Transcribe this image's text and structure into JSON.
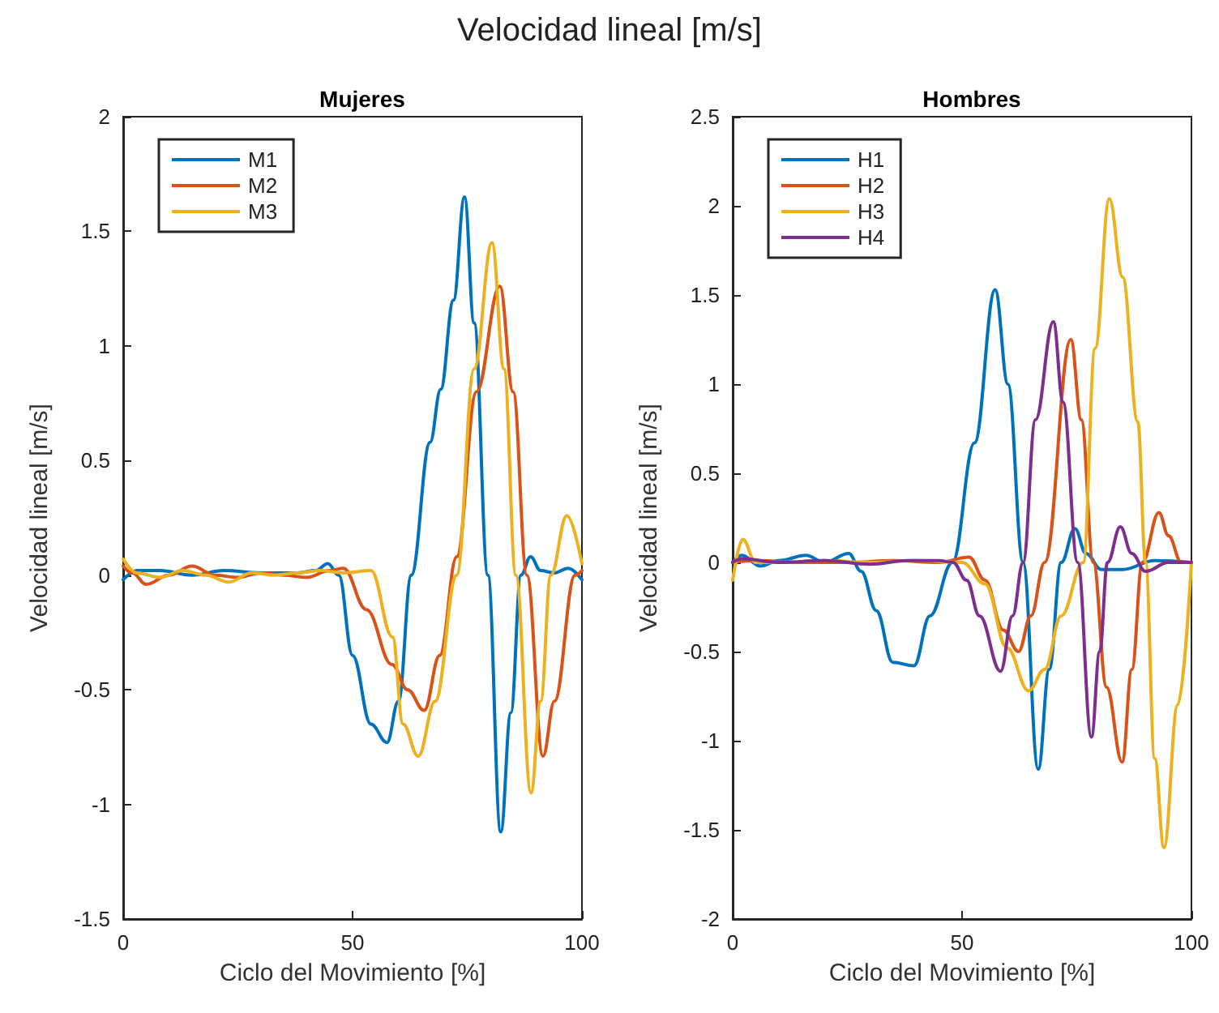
{
  "chart_data": [
    {
      "type": "line",
      "title": "Velocidad lineal [m/s]",
      "subtitle": "Mujeres",
      "xlabel": "Ciclo del Movimiento [%]",
      "ylabel": "Velocidad lineal [m/s]",
      "xlim": [
        0,
        100
      ],
      "xticks": [
        0,
        50,
        100
      ],
      "ylim": [
        -1.5,
        2
      ],
      "yticks": [
        -1.5,
        -1,
        -0.5,
        0,
        0.5,
        1,
        1.5,
        2
      ],
      "legend": "top left",
      "marker": "none",
      "line_style": "solid",
      "grid": false,
      "series": [
        {
          "name": "M1",
          "color": "#0072bd",
          "x": [
            0,
            3,
            8,
            15,
            22,
            30,
            38,
            42,
            44.6,
            47,
            50,
            54,
            57.5,
            60,
            62.8,
            66.9,
            69.2,
            72,
            74.4,
            76.5,
            79.5,
            82.3,
            84.5,
            86.7,
            88.8,
            91,
            94,
            97,
            100
          ],
          "values": [
            -0.02,
            0.02,
            0.02,
            0,
            0.02,
            0.01,
            0.01,
            0.02,
            0.05,
            0,
            -0.35,
            -0.65,
            -0.73,
            -0.55,
            0,
            0.58,
            0.81,
            1.2,
            1.65,
            1.1,
            0,
            -1.12,
            -0.6,
            0,
            0.08,
            0.02,
            0.01,
            0.03,
            -0.02
          ]
        },
        {
          "name": "M2",
          "color": "#d95319",
          "x": [
            0,
            2,
            5,
            10,
            15,
            20,
            25,
            30,
            35,
            40,
            45,
            48,
            53,
            58.6,
            62,
            65.6,
            69,
            72.7,
            77,
            82.1,
            85,
            88,
            91.5,
            94,
            98.5,
            100
          ],
          "values": [
            0.04,
            0.01,
            -0.04,
            0,
            0.04,
            0,
            -0.01,
            0.01,
            0,
            -0.01,
            0.02,
            0.03,
            -0.15,
            -0.39,
            -0.5,
            -0.59,
            -0.35,
            0.08,
            0.8,
            1.26,
            0.8,
            0,
            -0.79,
            -0.55,
            0,
            0.02
          ]
        },
        {
          "name": "M3",
          "color": "#edb120",
          "x": [
            0,
            3,
            8,
            13,
            18,
            23,
            28,
            33,
            38,
            43,
            48,
            54,
            58.7,
            61,
            64.3,
            68,
            72.7,
            76.5,
            80.4,
            83,
            85.6,
            88.9,
            91,
            93.2,
            96.7,
            100
          ],
          "values": [
            0.07,
            0.01,
            -0.01,
            0.02,
            0,
            -0.03,
            0.01,
            0,
            0.01,
            0.02,
            0.01,
            0.02,
            -0.27,
            -0.65,
            -0.79,
            -0.55,
            0,
            0.9,
            1.45,
            0.9,
            0,
            -0.95,
            -0.55,
            0,
            0.26,
            0.05
          ]
        }
      ]
    },
    {
      "type": "line",
      "title": "Hombres",
      "xlabel": "Ciclo del Movimiento [%]",
      "ylabel": "Velocidad lineal [m/s]",
      "xlim": [
        0,
        100
      ],
      "xticks": [
        0,
        50,
        100
      ],
      "ylim": [
        -2,
        2.5
      ],
      "yticks": [
        -2,
        -1.5,
        -1,
        -0.5,
        0,
        0.5,
        1,
        1.5,
        2,
        2.5
      ],
      "legend": "top left",
      "marker": "none",
      "line_style": "solid",
      "grid": false,
      "series": [
        {
          "name": "H1",
          "color": "#0072bd",
          "x": [
            0,
            2,
            6,
            10,
            16,
            20,
            25.3,
            28,
            31.3,
            34.9,
            39.5,
            43,
            47.9,
            52.7,
            57.2,
            60,
            63.3,
            66.6,
            69,
            71.6,
            74.6,
            77,
            80.4,
            85,
            92,
            100
          ],
          "values": [
            0,
            0.04,
            -0.02,
            0.01,
            0.04,
            0,
            0.05,
            -0.05,
            -0.27,
            -0.56,
            -0.58,
            -0.3,
            0,
            0.67,
            1.53,
            1,
            0,
            -1.16,
            -0.6,
            0,
            0.19,
            0.05,
            -0.04,
            -0.04,
            0.01,
            0
          ]
        },
        {
          "name": "H2",
          "color": "#d95319",
          "x": [
            0,
            5,
            15,
            25,
            35,
            45,
            51.5,
            55,
            59,
            62.3,
            65,
            68,
            73.7,
            76,
            78.6,
            81.5,
            84.9,
            87,
            89.3,
            92.9,
            95,
            97.8,
            100
          ],
          "values": [
            0,
            0.01,
            0,
            0,
            0.01,
            0,
            0.03,
            -0.1,
            -0.38,
            -0.5,
            -0.3,
            0,
            1.25,
            0.8,
            0,
            -0.7,
            -1.12,
            -0.6,
            0,
            0.28,
            0.15,
            0,
            0
          ]
        },
        {
          "name": "H3",
          "color": "#edb120",
          "x": [
            0,
            2.2,
            5,
            10,
            20,
            30,
            40,
            50,
            55,
            59.8,
            64.5,
            68,
            71.6,
            76.4,
            79,
            82.1,
            85,
            88.3,
            90,
            92,
            94,
            97,
            100
          ],
          "values": [
            -0.1,
            0.13,
            0,
            0,
            0.01,
            0,
            0.01,
            0,
            -0.12,
            -0.48,
            -0.72,
            -0.6,
            -0.3,
            0,
            1.2,
            2.04,
            1.6,
            0.79,
            0,
            -1.1,
            -1.6,
            -0.8,
            0
          ]
        },
        {
          "name": "H4",
          "color": "#7e2f8e",
          "x": [
            0,
            2,
            10,
            20,
            30,
            38,
            45,
            48,
            51,
            53.8,
            58.4,
            61,
            63.3,
            66,
            69.9,
            72,
            75.2,
            78.2,
            80,
            81.7,
            84.5,
            87,
            90,
            95,
            100
          ],
          "values": [
            0,
            0.02,
            0,
            0.01,
            -0.01,
            0.01,
            0.01,
            0,
            -0.1,
            -0.3,
            -0.61,
            -0.3,
            0,
            0.8,
            1.35,
            0.9,
            0,
            -0.98,
            -0.5,
            0,
            0.2,
            0.05,
            -0.05,
            0,
            0
          ]
        }
      ]
    }
  ]
}
